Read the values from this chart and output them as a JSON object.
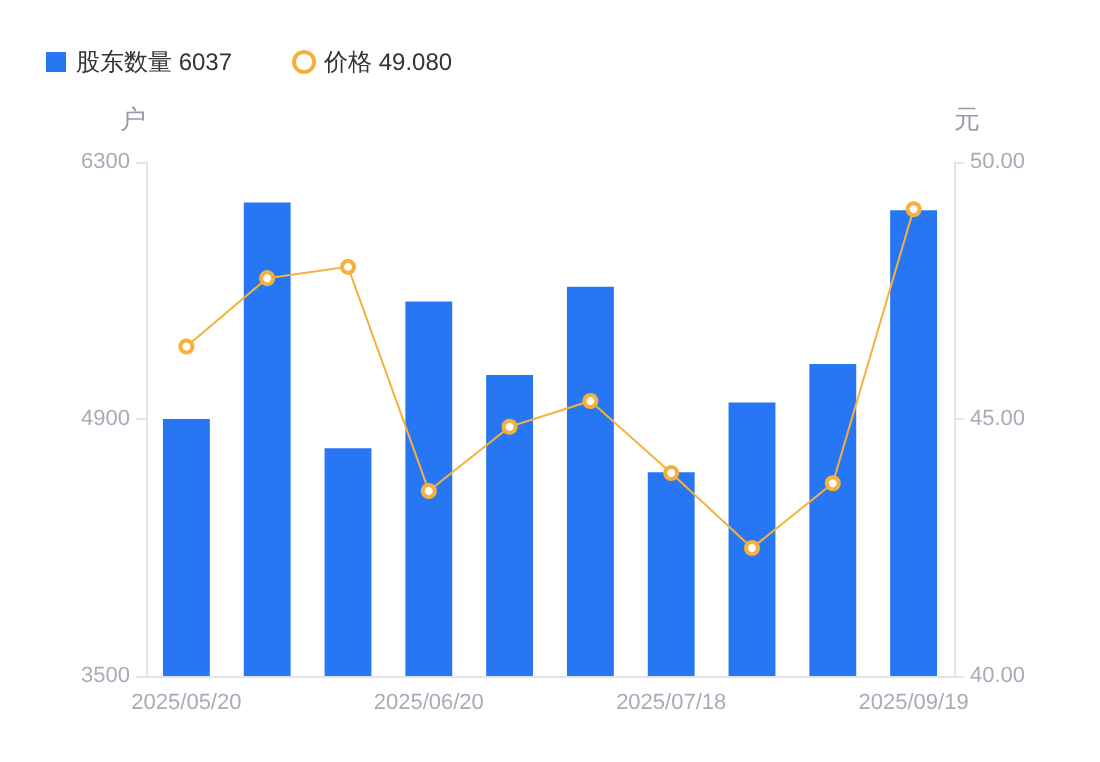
{
  "chart_data": {
    "type": "bar",
    "categories": [
      "2025/05/20",
      null,
      null,
      "2025/06/20",
      null,
      null,
      "2025/07/18",
      null,
      null,
      "2025/09/19"
    ],
    "series": [
      {
        "name": "股东数量 6037",
        "color": "#2776f3",
        "values": [
          4900,
          6080,
          4740,
          5540,
          5140,
          5620,
          4610,
          4990,
          5200,
          6037
        ]
      },
      {
        "name": "价格 49.080",
        "type": "line",
        "axis": "y2",
        "color": "#f5b13f",
        "values": [
          46.41,
          47.74,
          47.96,
          43.6,
          44.85,
          45.35,
          43.95,
          42.49,
          43.75,
          49.08
        ]
      }
    ],
    "ylabel": "户",
    "y2label": "元",
    "ylim": [
      3500,
      6300
    ],
    "yticks": [
      3500,
      4900,
      6300
    ],
    "y2lim": [
      40,
      50
    ],
    "y2ticks": [
      {
        "value": 40,
        "label": "40.00"
      },
      {
        "value": 45,
        "label": "45.00"
      },
      {
        "value": 50,
        "label": "50.00"
      }
    ],
    "grid": false,
    "legend": "top left",
    "marker": "circle",
    "line_style": "solid"
  }
}
